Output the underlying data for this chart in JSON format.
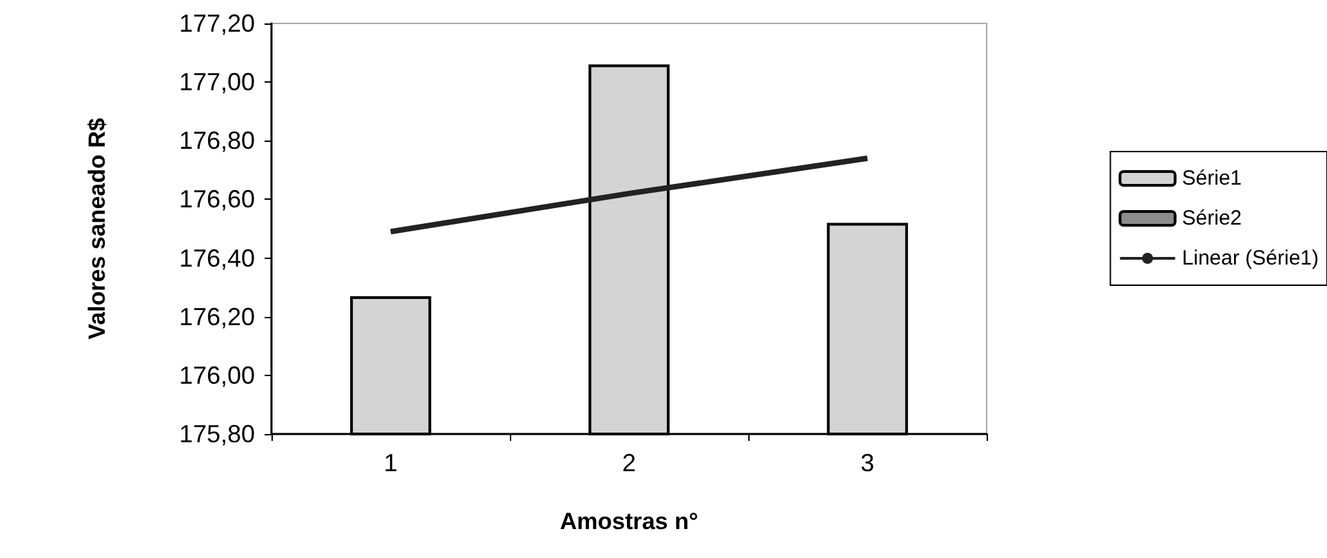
{
  "chart_data": {
    "type": "bar",
    "xlabel": "Amostras n°",
    "ylabel": "Valores saneado R$",
    "categories": [
      "1",
      "2",
      "3"
    ],
    "series": [
      {
        "name": "Série1",
        "color": "#d4d4d4",
        "values": [
          176.27,
          177.06,
          176.52
        ]
      },
      {
        "name": "Série2",
        "color": "#8c8c8c",
        "values": [
          null,
          null,
          null
        ]
      },
      {
        "name": "Linear (Série1)",
        "type": "line",
        "color": "#222222",
        "values": [
          176.49,
          176.62,
          176.74
        ]
      }
    ],
    "ylim": [
      175.8,
      177.2
    ],
    "yticks": [
      {
        "value": 175.8,
        "label": "175,80"
      },
      {
        "value": 176.0,
        "label": "176,00"
      },
      {
        "value": 176.2,
        "label": "176,20"
      },
      {
        "value": 176.4,
        "label": "176,40"
      },
      {
        "value": 176.6,
        "label": "176,60"
      },
      {
        "value": 176.8,
        "label": "176,80"
      },
      {
        "value": 177.0,
        "label": "177,00"
      },
      {
        "value": 177.2,
        "label": "177,20"
      }
    ],
    "grid": false,
    "legend": "right",
    "marker": "none"
  }
}
